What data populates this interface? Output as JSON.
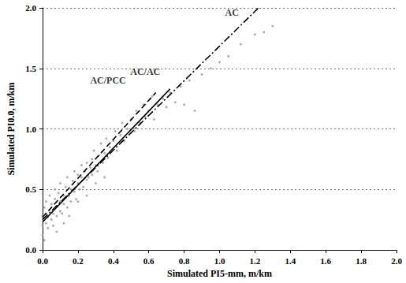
{
  "chart_data": {
    "type": "scatter",
    "x_label": "Simulated PI5-mm, m/km",
    "y_label": "Simulated PI0.0, m/km",
    "xlim": [
      0,
      2
    ],
    "ylim": [
      0,
      2
    ],
    "xticks": [
      {
        "value": 0,
        "label": "0.0"
      },
      {
        "value": 0.2,
        "label": "0.2"
      },
      {
        "value": 0.4,
        "label": "0.4"
      },
      {
        "value": 0.6,
        "label": "0.6"
      },
      {
        "value": 0.8,
        "label": "0.8"
      },
      {
        "value": 1,
        "label": "1.0"
      },
      {
        "value": 1.2,
        "label": "1.2"
      },
      {
        "value": 1.4,
        "label": "1.4"
      },
      {
        "value": 1.6,
        "label": "1.6"
      },
      {
        "value": 1.8,
        "label": "1.8"
      },
      {
        "value": 2,
        "label": "2.0"
      }
    ],
    "yticks": [
      {
        "value": 0,
        "label": "0.0"
      },
      {
        "value": 0.5,
        "label": "0.5"
      },
      {
        "value": 1,
        "label": "1.0"
      },
      {
        "value": 1.5,
        "label": "1.5"
      },
      {
        "value": 2,
        "label": "2.0"
      }
    ],
    "grid": "y",
    "series": [
      {
        "type": "scatter",
        "color": "#9a9a9a",
        "marker": "circle",
        "x": [
          0.0,
          0.0,
          0.0,
          0.01,
          0.01,
          0.02,
          0.02,
          0.02,
          0.03,
          0.03,
          0.04,
          0.04,
          0.05,
          0.05,
          0.06,
          0.06,
          0.07,
          0.07,
          0.08,
          0.08,
          0.09,
          0.1,
          0.1,
          0.1,
          0.11,
          0.12,
          0.12,
          0.13,
          0.14,
          0.14,
          0.15,
          0.16,
          0.16,
          0.17,
          0.18,
          0.18,
          0.19,
          0.2,
          0.2,
          0.21,
          0.22,
          0.22,
          0.23,
          0.24,
          0.25,
          0.25,
          0.26,
          0.27,
          0.28,
          0.28,
          0.29,
          0.3,
          0.31,
          0.32,
          0.33,
          0.34,
          0.35,
          0.36,
          0.37,
          0.38,
          0.4,
          0.41,
          0.42,
          0.44,
          0.45,
          0.46,
          0.48,
          0.5,
          0.52,
          0.53,
          0.55,
          0.57,
          0.58,
          0.6,
          0.62,
          0.63,
          0.65,
          0.68,
          0.7,
          0.72,
          0.75,
          0.78,
          0.8,
          0.83,
          0.86,
          0.9,
          0.95,
          1.0,
          1.05,
          1.12,
          1.2,
          1.25,
          1.3,
          0.15,
          0.08,
          0.12,
          0.2,
          0.25,
          0.3,
          0.35
        ],
        "values": [
          0.12,
          0.2,
          0.28,
          0.35,
          0.08,
          0.22,
          0.3,
          0.4,
          0.18,
          0.27,
          0.33,
          0.45,
          0.25,
          0.38,
          0.2,
          0.3,
          0.42,
          0.5,
          0.28,
          0.36,
          0.47,
          0.32,
          0.4,
          0.55,
          0.3,
          0.45,
          0.38,
          0.52,
          0.35,
          0.6,
          0.45,
          0.5,
          0.4,
          0.57,
          0.48,
          0.65,
          0.42,
          0.55,
          0.62,
          0.5,
          0.6,
          0.7,
          0.52,
          0.65,
          0.58,
          0.72,
          0.6,
          0.68,
          0.75,
          0.62,
          0.82,
          0.7,
          0.65,
          0.78,
          0.88,
          0.72,
          0.8,
          0.92,
          0.76,
          0.85,
          0.9,
          0.98,
          0.82,
          0.95,
          1.05,
          0.9,
          1.0,
          1.08,
          0.98,
          1.15,
          1.05,
          1.2,
          1.1,
          1.15,
          1.27,
          1.08,
          1.2,
          1.25,
          1.18,
          1.3,
          1.22,
          1.35,
          1.2,
          1.4,
          1.15,
          1.45,
          1.5,
          1.55,
          1.6,
          1.7,
          1.78,
          1.8,
          1.85,
          0.28,
          0.15,
          0.22,
          0.4,
          0.45,
          0.55,
          0.6
        ]
      },
      {
        "type": "line",
        "color": "#000000",
        "line_style": "dashdot",
        "x": [
          0,
          1.22
        ],
        "values": [
          0.25,
          2.0
        ]
      },
      {
        "type": "line",
        "color": "#000000",
        "line_style": "solid",
        "x": [
          0,
          0.72
        ],
        "values": [
          0.23,
          1.33
        ]
      },
      {
        "type": "line",
        "color": "#000000",
        "line_style": "dashed",
        "x": [
          0,
          0.64
        ],
        "values": [
          0.27,
          1.3
        ]
      }
    ],
    "annotations": [
      {
        "text": "AC",
        "x": 1.07,
        "y": 1.96
      },
      {
        "text": "AC/AC",
        "x": 0.58,
        "y": 1.47
      },
      {
        "text": "AC/PCC",
        "x": 0.37,
        "y": 1.4
      }
    ]
  }
}
